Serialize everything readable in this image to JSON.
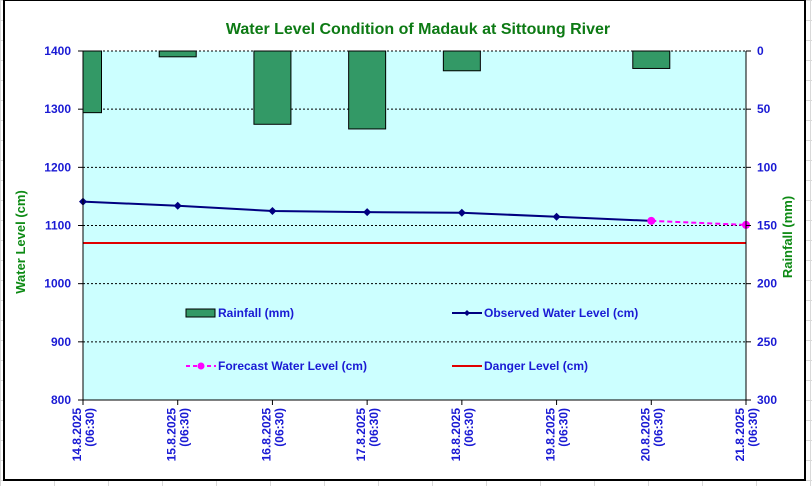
{
  "chart_data": {
    "type": "bar+line",
    "title": "Water Level Condition of Madauk at Sittoung River",
    "ylabel": "Water Level (cm)",
    "y2label": "Rainfall (mm)",
    "xlabel": "",
    "ylim": [
      800,
      1400
    ],
    "y2lim": [
      0,
      300
    ],
    "y2_inverted": true,
    "yticks": [
      "1400",
      "1300",
      "1200",
      "1100",
      "1000",
      "900",
      "800"
    ],
    "y2ticks": [
      "0",
      "50",
      "100",
      "150",
      "200",
      "250",
      "300"
    ],
    "grid": true,
    "categories": [
      {
        "date": "14.8.2025",
        "time": "(06:30)"
      },
      {
        "date": "15.8.2025",
        "time": "(06:30)"
      },
      {
        "date": "16.8.2025",
        "time": "(06:30)"
      },
      {
        "date": "17.8.2025",
        "time": "(06:30)"
      },
      {
        "date": "18.8.2025",
        "time": "(06:30)"
      },
      {
        "date": "19.8.2025",
        "time": "(06:30)"
      },
      {
        "date": "20.8.2025",
        "time": "(06:30)"
      },
      {
        "date": "21.8.2025",
        "time": "(06:30)"
      }
    ],
    "series": [
      {
        "name": "Rainfall (mm)",
        "type": "bar",
        "axis": "right",
        "color": "#339966",
        "values": [
          53,
          5,
          63,
          67,
          17,
          0,
          15,
          null
        ]
      },
      {
        "name": "Observed Water Level (cm)",
        "type": "line",
        "axis": "left",
        "color": "#000080",
        "marker": "diamond",
        "values": [
          1141,
          1134,
          1125,
          1123,
          1122,
          1115,
          1108,
          null
        ]
      },
      {
        "name": "Forecast Water Level (cm)",
        "type": "line",
        "axis": "left",
        "color": "#ff00ff",
        "marker": "circle",
        "dashed": true,
        "values": [
          null,
          null,
          null,
          null,
          null,
          null,
          1108,
          1101
        ]
      },
      {
        "name": "Danger Level (cm)",
        "type": "line",
        "axis": "left",
        "color": "#e00000",
        "values": [
          1070,
          1070,
          1070,
          1070,
          1070,
          1070,
          1070,
          1070
        ]
      }
    ],
    "legend": {
      "position": "inside-center",
      "items": [
        {
          "label": "Rainfall (mm)",
          "series": 0
        },
        {
          "label": "Observed Water Level (cm)",
          "series": 1
        },
        {
          "label": "Forecast Water Level (cm)",
          "series": 2
        },
        {
          "label": "Danger Level (cm)",
          "series": 3
        }
      ]
    },
    "colors": {
      "plot_background": "#ccffff",
      "title": "#0d7a14",
      "ticks": "#1a1ad4",
      "axis_titles": "#0d8a14"
    }
  }
}
